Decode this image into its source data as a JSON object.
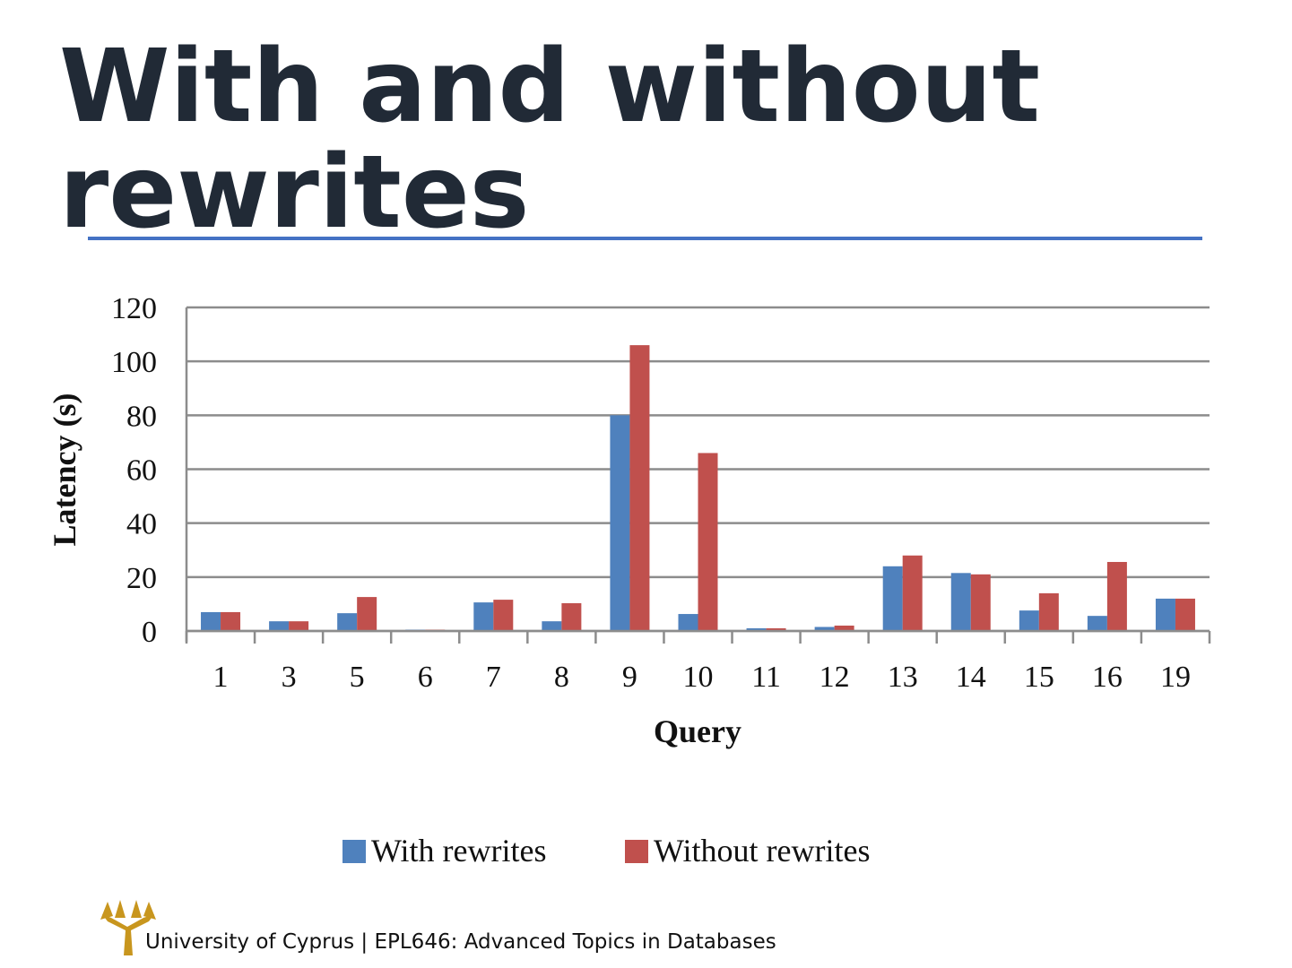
{
  "slide": {
    "title": "With and without rewrites",
    "footer": "University of Cyprus | EPL646: Advanced Topics in Databases",
    "accent_color": "#4472c4"
  },
  "chart_data": {
    "type": "bar",
    "xlabel": "Query",
    "ylabel": "Latency (s)",
    "ylim": [
      0,
      120
    ],
    "yticks": [
      0,
      20,
      40,
      60,
      80,
      100,
      120
    ],
    "grid": true,
    "legend_position": "bottom",
    "categories": [
      "1",
      "3",
      "5",
      "6",
      "7",
      "8",
      "9",
      "10",
      "11",
      "12",
      "13",
      "14",
      "15",
      "16",
      "19"
    ],
    "series": [
      {
        "name": "With rewrites",
        "color": "#4f81bd",
        "values": [
          7,
          3.6,
          6.6,
          0.5,
          10.6,
          3.6,
          80,
          6.3,
          1,
          1.5,
          24,
          21.5,
          7.6,
          5.6,
          12
        ]
      },
      {
        "name": "Without rewrites",
        "color": "#c0504d",
        "values": [
          7,
          3.6,
          12.6,
          0.5,
          11.6,
          10.3,
          106,
          66,
          1,
          2,
          28,
          21,
          14,
          25.6,
          12
        ]
      }
    ]
  }
}
